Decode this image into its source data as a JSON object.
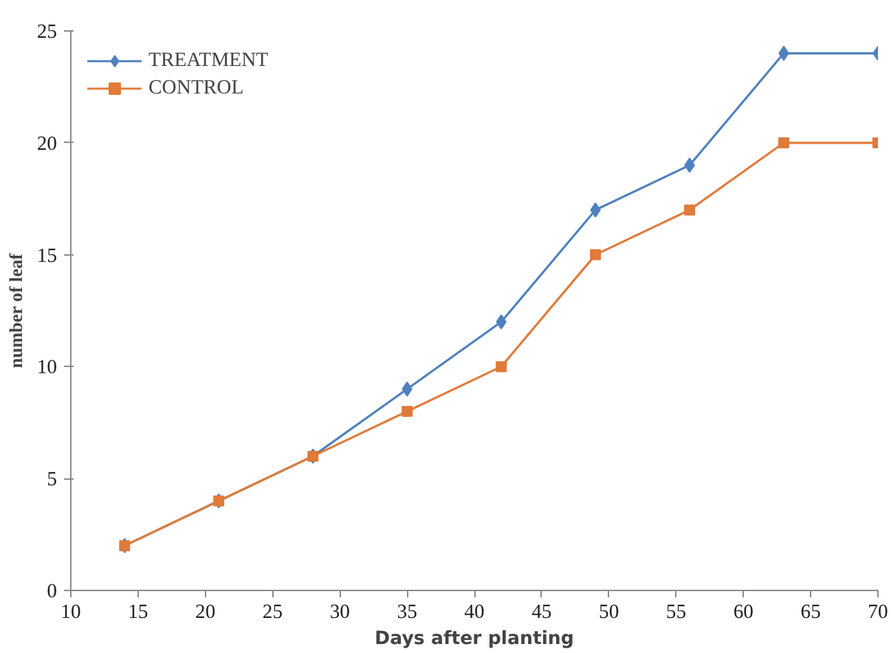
{
  "chart_data": {
    "type": "line",
    "xlabel": "Days after planting",
    "ylabel": "number of leaf",
    "x": [
      14,
      21,
      28,
      35,
      42,
      49,
      56,
      63,
      70
    ],
    "series": [
      {
        "name": "TREATMENT",
        "color": "#4f81bd",
        "marker": "diamond",
        "values": [
          2,
          4,
          6,
          9,
          12,
          17,
          19,
          24,
          24
        ]
      },
      {
        "name": "CONTROL",
        "color": "#e07b39",
        "marker": "square",
        "values": [
          2,
          4,
          6,
          8,
          10,
          15,
          17,
          20,
          20
        ]
      }
    ],
    "xlim": [
      10,
      70
    ],
    "xticks": [
      10,
      15,
      20,
      25,
      30,
      35,
      40,
      45,
      50,
      55,
      60,
      65,
      70
    ],
    "ylim": [
      0,
      25
    ],
    "yticks": [
      0,
      5,
      10,
      15,
      20,
      25
    ],
    "grid": false,
    "legend": "top left",
    "line_style": "solid"
  }
}
